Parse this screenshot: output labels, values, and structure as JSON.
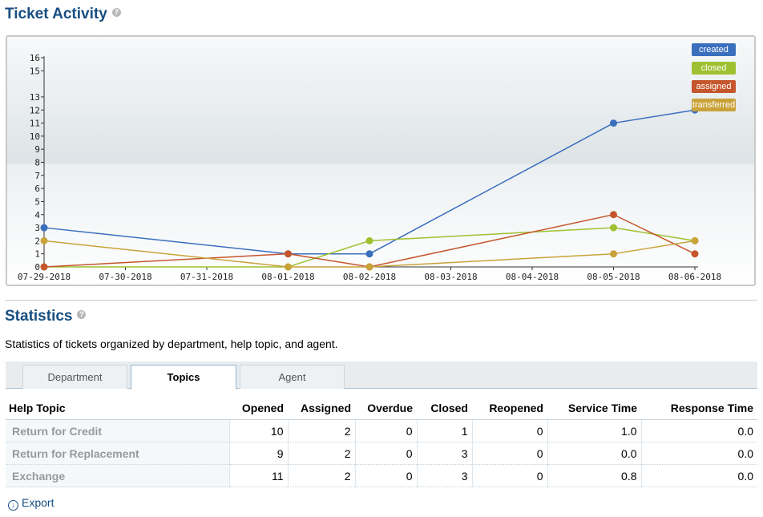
{
  "activity": {
    "title": "Ticket Activity",
    "help_glyph": "?"
  },
  "chart_data": {
    "type": "line",
    "x": [
      "07-29-2018",
      "07-30-2018",
      "07-31-2018",
      "08-01-2018",
      "08-02-2018",
      "08-03-2018",
      "08-04-2018",
      "08-05-2018",
      "08-06-2018"
    ],
    "yticks": [
      0,
      1,
      2,
      3,
      4,
      5,
      6,
      7,
      8,
      9,
      10,
      11,
      12,
      13,
      15,
      16
    ],
    "ylim": [
      0,
      16
    ],
    "series": [
      {
        "name": "created",
        "color": "#3a6fbe",
        "points": [
          [
            0,
            3
          ],
          [
            3,
            1
          ],
          [
            4,
            1
          ],
          [
            7,
            11
          ],
          [
            8,
            12
          ]
        ]
      },
      {
        "name": "closed",
        "color": "#9fc131",
        "points": [
          [
            0,
            0
          ],
          [
            3,
            0
          ],
          [
            4,
            2
          ],
          [
            7,
            3
          ],
          [
            8,
            2
          ]
        ]
      },
      {
        "name": "assigned",
        "color": "#c5562c",
        "points": [
          [
            0,
            0
          ],
          [
            3,
            1
          ],
          [
            4,
            0
          ],
          [
            7,
            4
          ],
          [
            8,
            1
          ]
        ]
      },
      {
        "name": "transferred",
        "color": "#c9a23a",
        "points": [
          [
            0,
            2
          ],
          [
            3,
            0
          ],
          [
            4,
            0
          ],
          [
            7,
            1
          ],
          [
            8,
            2
          ]
        ]
      }
    ],
    "legend": "top-right"
  },
  "stats": {
    "title": "Statistics",
    "help_glyph": "?",
    "description": "Statistics of tickets organized by department, help topic, and agent.",
    "tabs": [
      {
        "label": "Department",
        "active": false
      },
      {
        "label": "Topics",
        "active": true
      },
      {
        "label": "Agent",
        "active": false
      }
    ],
    "columns": [
      "Help Topic",
      "Opened",
      "Assigned",
      "Overdue",
      "Closed",
      "Reopened",
      "Service Time",
      "Response Time"
    ],
    "rows": [
      [
        "Return for Credit",
        "10",
        "2",
        "0",
        "1",
        "0",
        "1.0",
        "0.0"
      ],
      [
        "Return for Replacement",
        "9",
        "2",
        "0",
        "3",
        "0",
        "0.0",
        "0.0"
      ],
      [
        "Exchange",
        "11",
        "2",
        "0",
        "3",
        "0",
        "0.8",
        "0.0"
      ]
    ],
    "export_label": "Export"
  }
}
